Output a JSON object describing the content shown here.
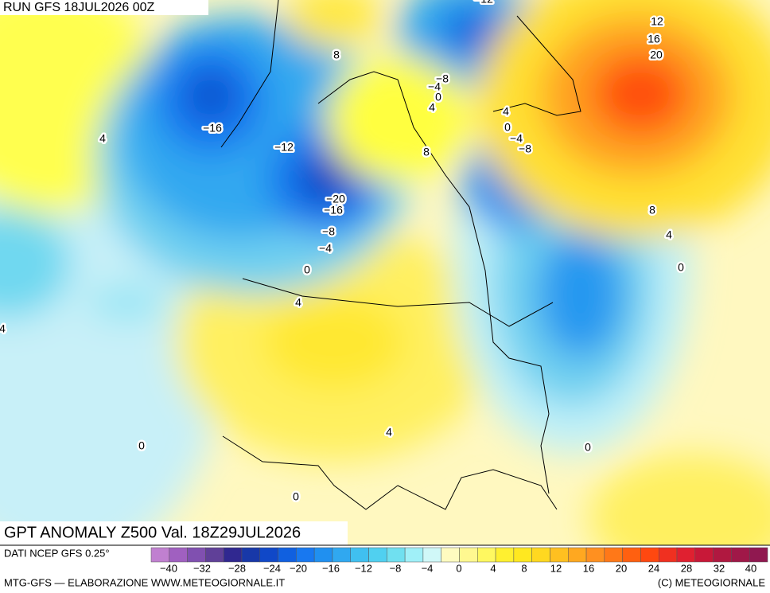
{
  "header": {
    "run": "RUN GFS 18JUL2026 00Z"
  },
  "map": {
    "contour_labels": [
      "8",
      "−16",
      "4",
      "−12",
      "−20",
      "−16",
      "−8",
      "−4",
      "0",
      "4",
      "4",
      "−8",
      "−4",
      "0",
      "4",
      "8",
      "4",
      "0",
      "−4",
      "−8",
      "12",
      "16",
      "20",
      "8",
      "4",
      "0",
      "0",
      "4",
      "0",
      "0",
      "−12"
    ]
  },
  "footer": {
    "title": "GPT ANOMALY Z500 Val. 18Z29JUL2026",
    "source": "DATI NCEP GFS 0.25°",
    "credit": "MTG-GFS — ELABORAZIONE WWW.METEOGIORNALE.IT",
    "copyright": "(C) METEOGIORNALE"
  },
  "legend": {
    "colors": [
      "#c080d0",
      "#a060c0",
      "#8050b0",
      "#604098",
      "#302890",
      "#1838a8",
      "#1048c8",
      "#1060e0",
      "#1878f0",
      "#2090f0",
      "#30a8f0",
      "#40c0f0",
      "#50d0f0",
      "#70e0f0",
      "#a0f0f8",
      "#d0f8f8",
      "#fffbc0",
      "#fff890",
      "#fff860",
      "#fff030",
      "#ffe820",
      "#ffd820",
      "#ffc020",
      "#ffa820",
      "#ff9020",
      "#ff7818",
      "#ff6010",
      "#ff4810",
      "#f03020",
      "#e02030",
      "#c81838",
      "#b01840",
      "#a01848",
      "#901850"
    ],
    "labels": [
      "−40",
      "−32",
      "−28",
      "−24",
      "−20",
      "−16",
      "−12",
      "−8",
      "−4",
      "0",
      "4",
      "8",
      "12",
      "16",
      "20",
      "24",
      "28",
      "32",
      "40"
    ]
  }
}
